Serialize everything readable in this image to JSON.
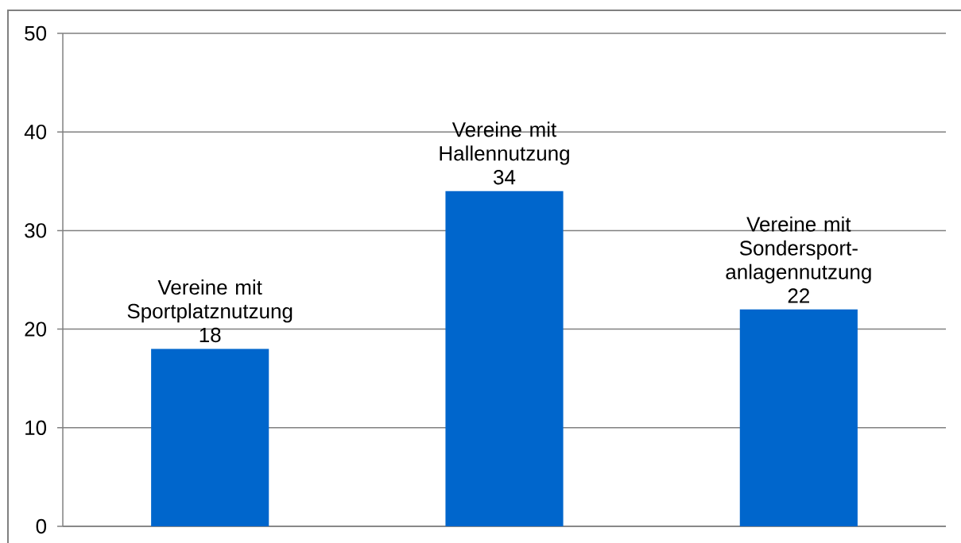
{
  "chart_data": {
    "type": "bar",
    "categories": [
      "Vereine mit Sportplatznutzung",
      "Vereine mit Hallennutzung",
      "Vereine mit Sondersport-anlagennutzung"
    ],
    "values": [
      18,
      34,
      22
    ],
    "color": "#0066cc",
    "ylim": [
      0,
      50
    ],
    "yticks": [
      0,
      10,
      20,
      30,
      40,
      50
    ],
    "grid": "y",
    "data_labels": true,
    "tick_labels": "y"
  }
}
